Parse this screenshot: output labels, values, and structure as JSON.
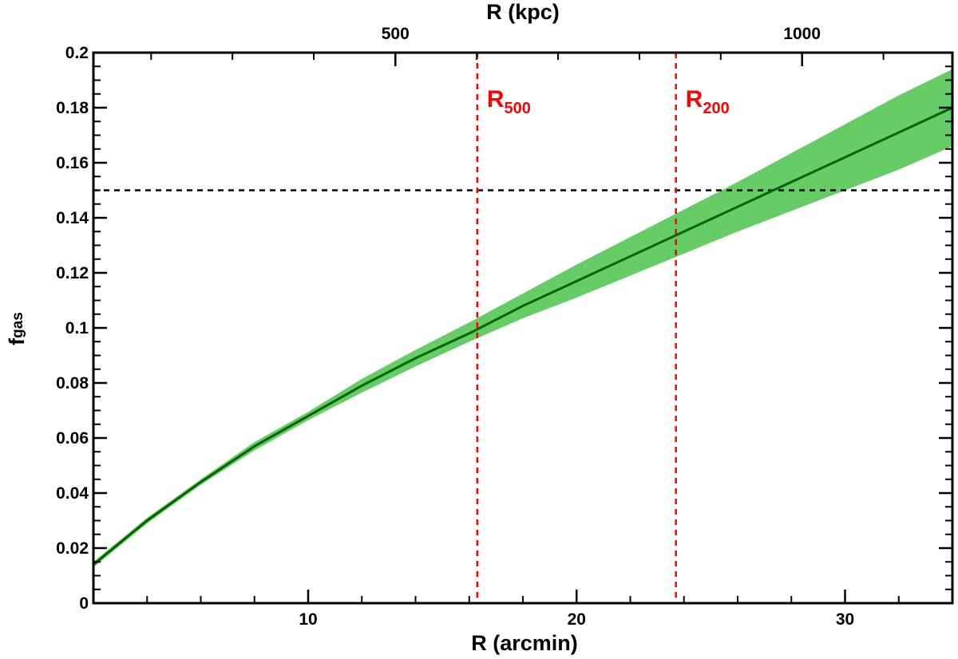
{
  "chart_data": {
    "type": "line",
    "xlabel": "R (arcmin)",
    "ylabel_main": "f",
    "ylabel_sub": "gas",
    "top_xlabel": "R (kpc)",
    "xlim": [
      2,
      34
    ],
    "ylim": [
      0,
      0.2
    ],
    "x_ticks": [
      10,
      20,
      30
    ],
    "x_tick_labels": [
      "10",
      "20",
      "30"
    ],
    "y_ticks": [
      0,
      0.02,
      0.04,
      0.06,
      0.08,
      0.1,
      0.12,
      0.14,
      0.16,
      0.18,
      0.2
    ],
    "y_tick_labels": [
      "0",
      "0.02",
      "0.04",
      "0.06",
      "0.08",
      "0.1",
      "0.12",
      "0.14",
      "0.16",
      "0.18",
      "0.2"
    ],
    "top_ticks": [
      {
        "arcmin": 4.15,
        "kpc": 200
      },
      {
        "arcmin": 7.18,
        "kpc": 300
      },
      {
        "arcmin": 10.21,
        "kpc": 400
      },
      {
        "arcmin": 13.25,
        "kpc": 500,
        "label": "500"
      },
      {
        "arcmin": 16.28,
        "kpc": 600
      },
      {
        "arcmin": 19.31,
        "kpc": 700
      },
      {
        "arcmin": 22.34,
        "kpc": 800
      },
      {
        "arcmin": 25.37,
        "kpc": 900
      },
      {
        "arcmin": 28.4,
        "kpc": 1000,
        "label": "1000"
      },
      {
        "arcmin": 31.43,
        "kpc": 1100
      }
    ],
    "series": [
      {
        "x": [
          2,
          4,
          6,
          8,
          10,
          12,
          14,
          16,
          18,
          20,
          22,
          24,
          26,
          28,
          30,
          32,
          34
        ],
        "y": [
          0.014,
          0.03,
          0.044,
          0.057,
          0.068,
          0.079,
          0.089,
          0.098,
          0.108,
          0.117,
          0.126,
          0.135,
          0.144,
          0.153,
          0.162,
          0.171,
          0.18
        ],
        "lower": [
          0.013,
          0.029,
          0.043,
          0.0555,
          0.0665,
          0.0765,
          0.086,
          0.095,
          0.1035,
          0.111,
          0.119,
          0.127,
          0.135,
          0.1425,
          0.15,
          0.1575,
          0.166
        ],
        "upper": [
          0.015,
          0.031,
          0.045,
          0.0585,
          0.0695,
          0.0815,
          0.092,
          0.102,
          0.1125,
          0.123,
          0.133,
          0.143,
          0.153,
          0.1635,
          0.174,
          0.1845,
          0.194
        ],
        "color": "#006400",
        "band_color": "#66cc66"
      }
    ],
    "hline": {
      "y": 0.15,
      "style": "dashed",
      "color": "#000000"
    },
    "vlines": [
      {
        "x": 16.3,
        "label": "R",
        "sub": "500",
        "color": "#ff0000"
      },
      {
        "x": 23.7,
        "label": "R",
        "sub": "200",
        "color": "#ff0000"
      }
    ],
    "grid": false
  }
}
